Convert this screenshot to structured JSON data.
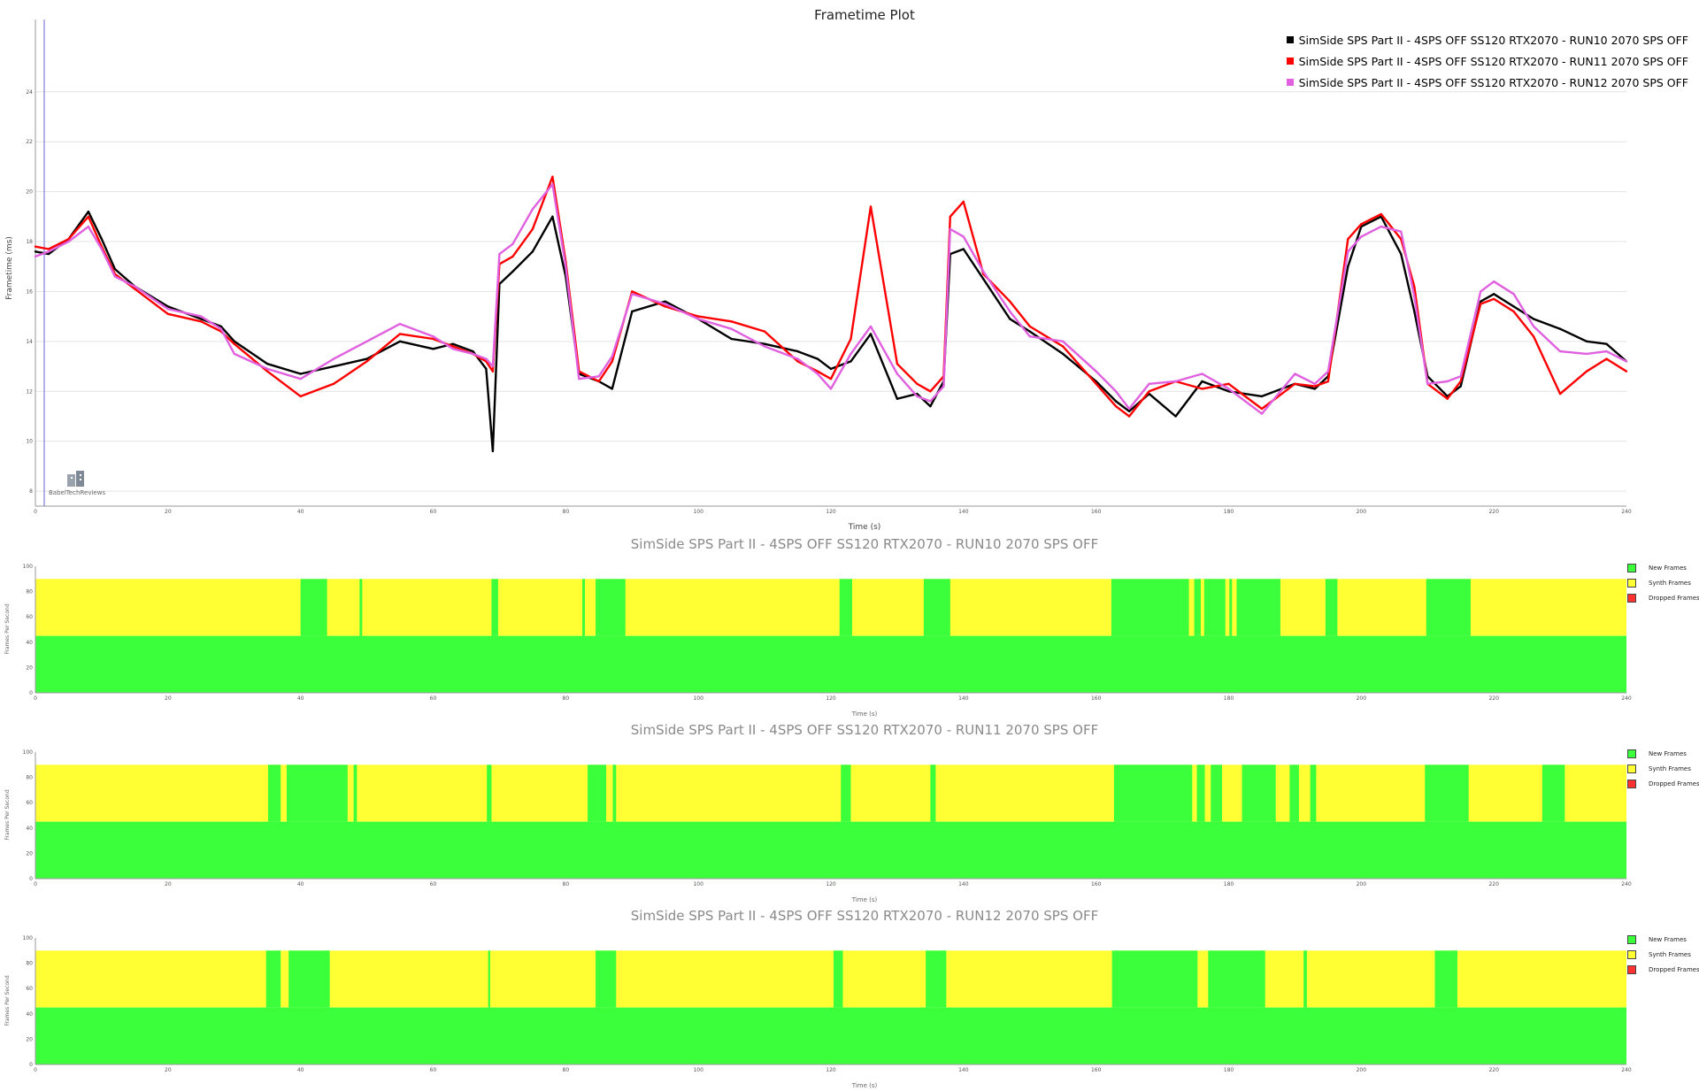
{
  "chart_data": [
    {
      "type": "line",
      "title": "Frametime Plot",
      "xlabel": "Time (s)",
      "ylabel": "Frametime (ms)",
      "xlim": [
        0,
        240
      ],
      "ylim": [
        7.4,
        26.9
      ],
      "x_ticks": [
        0,
        20,
        40,
        60,
        80,
        100,
        120,
        140,
        160,
        180,
        200,
        220,
        240
      ],
      "y_ticks": [
        8,
        10,
        12,
        14,
        16,
        18,
        20,
        22,
        24
      ],
      "grid": true,
      "legend_position": "top-right",
      "watermark": "BabelTechReviews",
      "series": [
        {
          "name": "SimSide SPS Part II - 4SPS OFF SS120 RTX2070 - RUN10 2070 SPS OFF",
          "color": "#000000",
          "x": [
            0,
            2,
            5,
            8,
            10,
            12,
            15,
            20,
            25,
            28,
            30,
            35,
            40,
            45,
            50,
            55,
            60,
            63,
            66,
            68,
            69,
            70,
            72,
            75,
            78,
            80,
            82,
            85,
            87,
            90,
            95,
            100,
            105,
            110,
            115,
            118,
            120,
            123,
            126,
            130,
            133,
            135,
            137,
            138,
            140,
            143,
            147,
            150,
            155,
            160,
            163,
            165,
            168,
            172,
            176,
            180,
            185,
            190,
            193,
            195,
            198,
            200,
            203,
            206,
            208,
            210,
            213,
            215,
            218,
            220,
            223,
            226,
            230,
            234,
            237,
            240
          ],
          "y": [
            17.6,
            17.5,
            18.1,
            19.2,
            18.1,
            16.9,
            16.2,
            15.4,
            14.9,
            14.6,
            14.0,
            13.1,
            12.7,
            13.0,
            13.3,
            14.0,
            13.7,
            13.9,
            13.6,
            12.9,
            9.6,
            16.3,
            16.8,
            17.6,
            19.0,
            16.6,
            12.7,
            12.4,
            12.1,
            15.2,
            15.6,
            14.9,
            14.1,
            13.9,
            13.6,
            13.3,
            12.9,
            13.2,
            14.3,
            11.7,
            11.9,
            11.4,
            12.4,
            17.5,
            17.7,
            16.5,
            14.9,
            14.4,
            13.5,
            12.4,
            11.6,
            11.2,
            11.9,
            11.0,
            12.4,
            12.0,
            11.8,
            12.3,
            12.1,
            12.6,
            17.0,
            18.6,
            19.0,
            17.5,
            15.2,
            12.6,
            11.8,
            12.2,
            15.6,
            15.9,
            15.4,
            14.9,
            14.5,
            14.0,
            13.9,
            13.2
          ]
        },
        {
          "name": "SimSide SPS Part II - 4SPS OFF SS120 RTX2070 - RUN11 2070 SPS OFF",
          "color": "#ff0000",
          "x": [
            0,
            2,
            5,
            8,
            10,
            12,
            15,
            20,
            25,
            28,
            30,
            35,
            40,
            45,
            50,
            55,
            60,
            63,
            66,
            68,
            69,
            70,
            72,
            75,
            78,
            80,
            82,
            85,
            87,
            90,
            95,
            100,
            105,
            110,
            115,
            118,
            120,
            123,
            126,
            130,
            133,
            135,
            137,
            138,
            140,
            143,
            147,
            150,
            155,
            160,
            163,
            165,
            168,
            172,
            176,
            180,
            185,
            190,
            193,
            195,
            198,
            200,
            203,
            206,
            208,
            210,
            213,
            215,
            218,
            220,
            223,
            226,
            230,
            234,
            237,
            240
          ],
          "y": [
            17.8,
            17.7,
            18.1,
            19.0,
            17.8,
            16.7,
            16.1,
            15.1,
            14.8,
            14.4,
            13.9,
            12.8,
            11.8,
            12.3,
            13.2,
            14.3,
            14.1,
            13.8,
            13.5,
            13.2,
            12.8,
            17.1,
            17.4,
            18.5,
            20.6,
            17.2,
            12.8,
            12.4,
            13.2,
            16.0,
            15.4,
            15.0,
            14.8,
            14.4,
            13.2,
            12.8,
            12.5,
            14.1,
            19.4,
            13.1,
            12.3,
            12.0,
            12.6,
            19.0,
            19.6,
            16.7,
            15.6,
            14.6,
            13.8,
            12.3,
            11.4,
            11.0,
            12.0,
            12.4,
            12.1,
            12.3,
            11.3,
            12.3,
            12.2,
            12.4,
            18.1,
            18.7,
            19.1,
            18.1,
            16.2,
            12.3,
            11.7,
            12.4,
            15.5,
            15.7,
            15.2,
            14.2,
            11.9,
            12.8,
            13.3,
            12.8
          ]
        },
        {
          "name": "SimSide SPS Part II - 4SPS OFF SS120 RTX2070 - RUN12 2070 SPS OFF",
          "color": "#e060e0",
          "x": [
            0,
            2,
            5,
            8,
            10,
            12,
            15,
            20,
            25,
            28,
            30,
            35,
            40,
            45,
            50,
            55,
            60,
            63,
            66,
            68,
            69,
            70,
            72,
            75,
            78,
            80,
            82,
            85,
            87,
            90,
            95,
            100,
            105,
            110,
            115,
            118,
            120,
            123,
            126,
            130,
            133,
            135,
            137,
            138,
            140,
            143,
            147,
            150,
            155,
            160,
            163,
            165,
            168,
            172,
            176,
            180,
            185,
            190,
            193,
            195,
            198,
            200,
            203,
            206,
            208,
            210,
            213,
            215,
            218,
            220,
            223,
            226,
            230,
            234,
            237,
            240
          ],
          "y": [
            17.4,
            17.6,
            18.0,
            18.6,
            17.7,
            16.6,
            16.2,
            15.3,
            15.0,
            14.5,
            13.5,
            12.9,
            12.5,
            13.3,
            14.0,
            14.7,
            14.2,
            13.7,
            13.5,
            13.3,
            13.0,
            17.5,
            17.9,
            19.3,
            20.3,
            17.0,
            12.5,
            12.6,
            13.4,
            15.9,
            15.5,
            14.9,
            14.5,
            13.8,
            13.3,
            12.7,
            12.1,
            13.5,
            14.6,
            12.7,
            11.8,
            11.6,
            12.2,
            18.5,
            18.2,
            16.8,
            15.2,
            14.2,
            14.0,
            12.8,
            12.0,
            11.3,
            12.3,
            12.4,
            12.7,
            12.1,
            11.1,
            12.7,
            12.3,
            12.8,
            17.6,
            18.2,
            18.6,
            18.4,
            15.8,
            12.3,
            12.4,
            12.6,
            16.0,
            16.4,
            15.9,
            14.6,
            13.6,
            13.5,
            13.6,
            13.2
          ]
        }
      ]
    },
    {
      "type": "area",
      "title": "SimSide SPS Part II - 4SPS OFF SS120 RTX2070 - RUN10 2070 SPS OFF",
      "xlabel": "Time (s)",
      "ylabel": "Frames Per Second",
      "xlim": [
        0,
        240
      ],
      "ylim": [
        0,
        100
      ],
      "x_ticks": [
        0,
        20,
        40,
        60,
        80,
        100,
        120,
        140,
        160,
        180,
        200,
        220,
        240
      ],
      "y_ticks": [
        0,
        20,
        40,
        60,
        80,
        100
      ],
      "legend_position": "right",
      "legend": [
        {
          "label": "New Frames",
          "color": "#3cff3c"
        },
        {
          "label": "Synth Frames",
          "color": "#ffff33"
        },
        {
          "label": "Dropped Frames",
          "color": "#ff3030"
        }
      ],
      "new_frames_fps": 45,
      "total_fps": 90,
      "full_new_frame_intervals": [
        [
          40,
          44
        ],
        [
          48.9,
          49.3
        ],
        [
          68.8,
          69.8
        ],
        [
          82.5,
          82.9
        ],
        [
          84.5,
          89
        ],
        [
          121.3,
          123.2
        ],
        [
          134,
          138
        ],
        [
          162.3,
          174
        ],
        [
          174.8,
          175.8
        ],
        [
          176.3,
          179.5
        ],
        [
          180.1,
          180.5
        ],
        [
          181.2,
          187.8
        ],
        [
          194.6,
          196.4
        ],
        [
          209.8,
          216.5
        ]
      ]
    },
    {
      "type": "area",
      "title": "SimSide SPS Part II - 4SPS OFF SS120 RTX2070 - RUN11 2070 SPS OFF",
      "xlabel": "Time (s)",
      "ylabel": "Frames Per Second",
      "xlim": [
        0,
        240
      ],
      "ylim": [
        0,
        100
      ],
      "x_ticks": [
        0,
        20,
        40,
        60,
        80,
        100,
        120,
        140,
        160,
        180,
        200,
        220,
        240
      ],
      "y_ticks": [
        0,
        20,
        40,
        60,
        80,
        100
      ],
      "legend_position": "right",
      "legend": [
        {
          "label": "New Frames",
          "color": "#3cff3c"
        },
        {
          "label": "Synth Frames",
          "color": "#ffff33"
        },
        {
          "label": "Dropped Frames",
          "color": "#ff3030"
        }
      ],
      "new_frames_fps": 45,
      "total_fps": 90,
      "full_new_frame_intervals": [
        [
          35.1,
          37
        ],
        [
          37.9,
          47.1
        ],
        [
          48,
          48.5
        ],
        [
          68.1,
          68.8
        ],
        [
          83.3,
          86.1
        ],
        [
          87.1,
          87.6
        ],
        [
          121.5,
          123
        ],
        [
          135,
          135.8
        ],
        [
          162.7,
          174.5
        ],
        [
          175.2,
          176.4
        ],
        [
          177.3,
          179
        ],
        [
          182,
          187.1
        ],
        [
          189.2,
          190.6
        ],
        [
          192.3,
          193.2
        ],
        [
          209.6,
          216.2
        ],
        [
          227.3,
          230.7
        ]
      ]
    },
    {
      "type": "area",
      "title": "SimSide SPS Part II - 4SPS OFF SS120 RTX2070 - RUN12 2070 SPS OFF",
      "xlabel": "Time (s)",
      "ylabel": "Frames Per Second",
      "xlim": [
        0,
        240
      ],
      "ylim": [
        0,
        100
      ],
      "x_ticks": [
        0,
        20,
        40,
        60,
        80,
        100,
        120,
        140,
        160,
        180,
        200,
        220,
        240
      ],
      "y_ticks": [
        0,
        20,
        40,
        60,
        80,
        100
      ],
      "legend_position": "right",
      "legend": [
        {
          "label": "New Frames",
          "color": "#3cff3c"
        },
        {
          "label": "Synth Frames",
          "color": "#ffff33"
        },
        {
          "label": "Dropped Frames",
          "color": "#ff3030"
        }
      ],
      "new_frames_fps": 45,
      "total_fps": 90,
      "full_new_frame_intervals": [
        [
          34.8,
          37
        ],
        [
          38.2,
          44.4
        ],
        [
          68.3,
          68.6
        ],
        [
          84.5,
          87.6
        ],
        [
          120.4,
          121.8
        ],
        [
          134.3,
          137.4
        ],
        [
          162.4,
          175.3
        ],
        [
          176.9,
          185.5
        ],
        [
          191.3,
          191.8
        ],
        [
          211.1,
          214.5
        ]
      ]
    }
  ]
}
